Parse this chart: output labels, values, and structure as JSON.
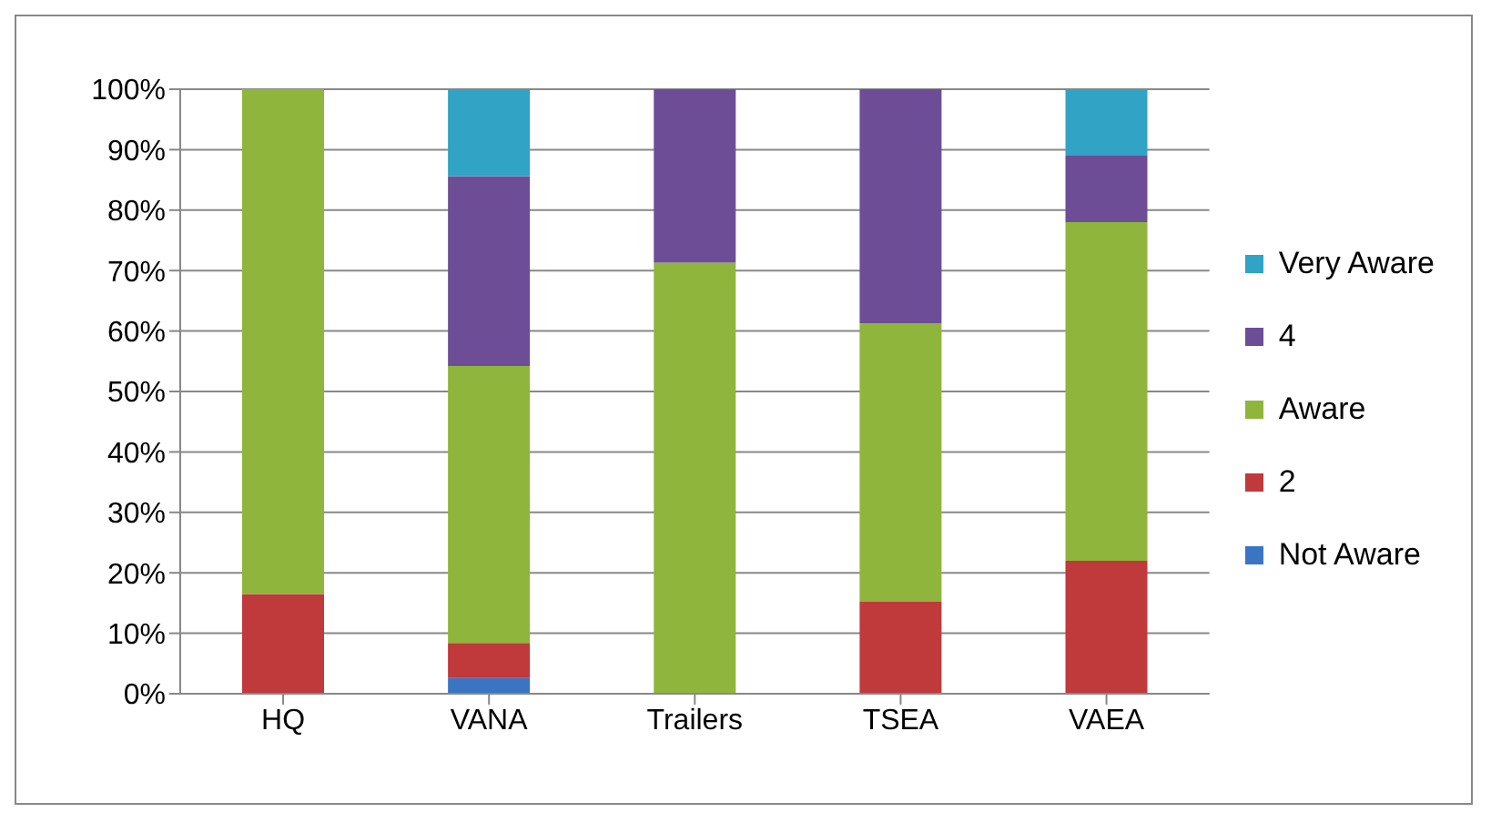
{
  "chart_data": {
    "type": "bar",
    "stacked": true,
    "categories": [
      "HQ",
      "VANA",
      "Trailers",
      "TSEA",
      "VAEA"
    ],
    "series": [
      {
        "name": "Not Aware",
        "color": "#3a75c4",
        "values": [
          0,
          2.6,
          0,
          0,
          0
        ]
      },
      {
        "name": "2",
        "color": "#c0393b",
        "values": [
          16.5,
          5.8,
          0,
          15.2,
          22
        ]
      },
      {
        "name": "Aware",
        "color": "#8fb53c",
        "values": [
          83.5,
          45.8,
          71.3,
          46.1,
          56
        ]
      },
      {
        "name": "4",
        "color": "#6d4e96",
        "values": [
          0,
          31.4,
          28.7,
          38.7,
          11
        ]
      },
      {
        "name": "Very Aware",
        "color": "#31a3c4",
        "values": [
          0,
          14.4,
          0,
          0,
          11
        ]
      }
    ],
    "ylim": [
      0,
      100
    ],
    "yticks": [
      {
        "value": 0,
        "label": "0%"
      },
      {
        "value": 10,
        "label": "10%"
      },
      {
        "value": 20,
        "label": "20%"
      },
      {
        "value": 30,
        "label": "30%"
      },
      {
        "value": 40,
        "label": "40%"
      },
      {
        "value": 50,
        "label": "50%"
      },
      {
        "value": 60,
        "label": "60%"
      },
      {
        "value": 70,
        "label": "70%"
      },
      {
        "value": 80,
        "label": "80%"
      },
      {
        "value": 90,
        "label": "90%"
      },
      {
        "value": 100,
        "label": "100%"
      }
    ],
    "grid": "y",
    "legend": "right"
  }
}
